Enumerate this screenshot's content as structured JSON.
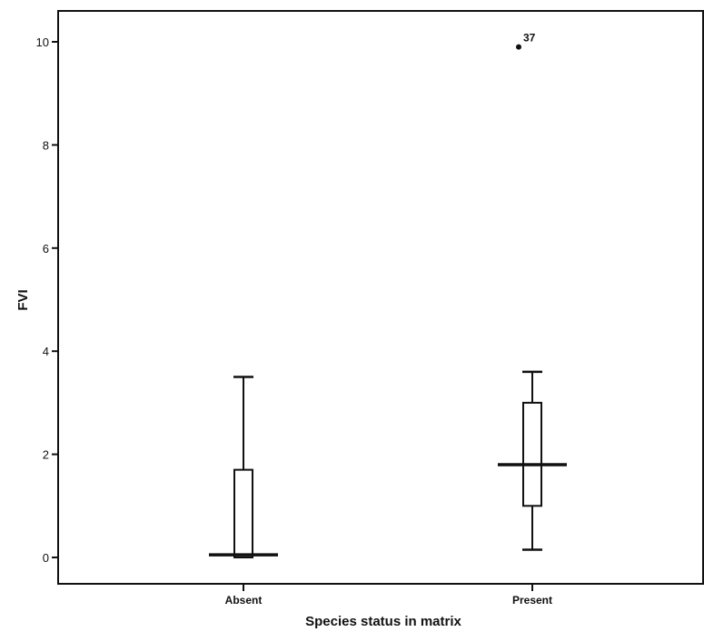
{
  "chart_data": {
    "type": "boxplot",
    "xlabel": "Species status in matrix",
    "ylabel": "FVI",
    "ylim": [
      0,
      10
    ],
    "yticks": [
      0,
      2,
      4,
      6,
      8,
      10
    ],
    "categories": [
      "Absent",
      "Present"
    ],
    "boxes": [
      {
        "category": "Absent",
        "whisker_low": 0,
        "q1": 0,
        "median": 0.05,
        "q3": 1.7,
        "whisker_high": 3.5
      },
      {
        "category": "Present",
        "whisker_low": 0.15,
        "q1": 1.0,
        "median": 1.8,
        "q3": 3.0,
        "whisker_high": 3.6
      }
    ],
    "outliers": [
      {
        "category": "Present",
        "value": 9.9,
        "label": "37"
      }
    ],
    "grid": false,
    "legend": "none"
  }
}
